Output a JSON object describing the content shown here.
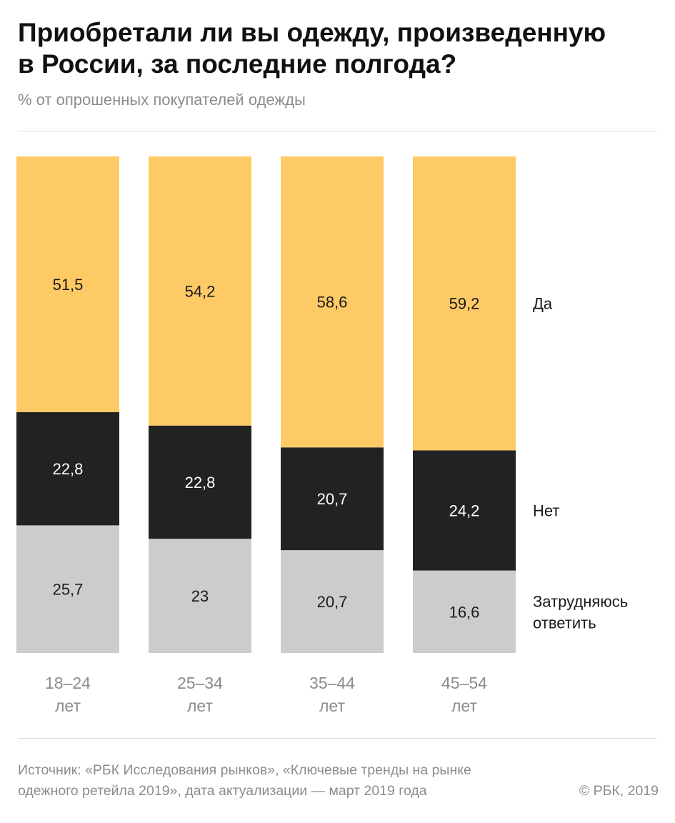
{
  "header": {
    "title_lines": [
      "Приобретали ли вы одежду, произведенную",
      "в России, за последние полгода?"
    ],
    "subtitle": "% от опрошенных покупателей одежды"
  },
  "chart_data": {
    "type": "bar",
    "stacked": true,
    "title": "Приобретали ли вы одежду, произведенную в России, за последние полгода?",
    "subtitle": "% от опрошенных покупателей одежды",
    "categories": [
      [
        "18–24",
        "лет"
      ],
      [
        "25–34",
        "лет"
      ],
      [
        "35–44",
        "лет"
      ],
      [
        "45–54",
        "лет"
      ]
    ],
    "series": [
      {
        "name": "Затрудняюсь ответить",
        "label_lines": [
          "Затрудняюсь",
          "ответить"
        ],
        "color": "#cccccc",
        "text_color": "#1a1a1a",
        "values": [
          25.7,
          23,
          20.7,
          16.6
        ],
        "labels": [
          "25,7",
          "23",
          "20,7",
          "16,6"
        ]
      },
      {
        "name": "Нет",
        "label_lines": [
          "Нет"
        ],
        "color": "#222222",
        "text_color": "#ffffff",
        "values": [
          22.8,
          22.8,
          20.7,
          24.2
        ],
        "labels": [
          "22,8",
          "22,8",
          "20,7",
          "24,2"
        ]
      },
      {
        "name": "Да",
        "label_lines": [
          "Да"
        ],
        "color": "#fdca65",
        "text_color": "#1a1a1a",
        "values": [
          51.5,
          54.2,
          58.6,
          59.2
        ],
        "labels": [
          "51,5",
          "54,2",
          "58,6",
          "59,2"
        ]
      }
    ],
    "ylim": [
      0,
      100
    ],
    "legend": "right",
    "grid": false
  },
  "footer": {
    "source_lines": [
      "Источник: «РБК Исследования рынков», «Ключевые тренды на рынке",
      "одежного ретейла 2019», дата актуализации —  март 2019 года"
    ],
    "copyright": "© РБК, 2019"
  }
}
